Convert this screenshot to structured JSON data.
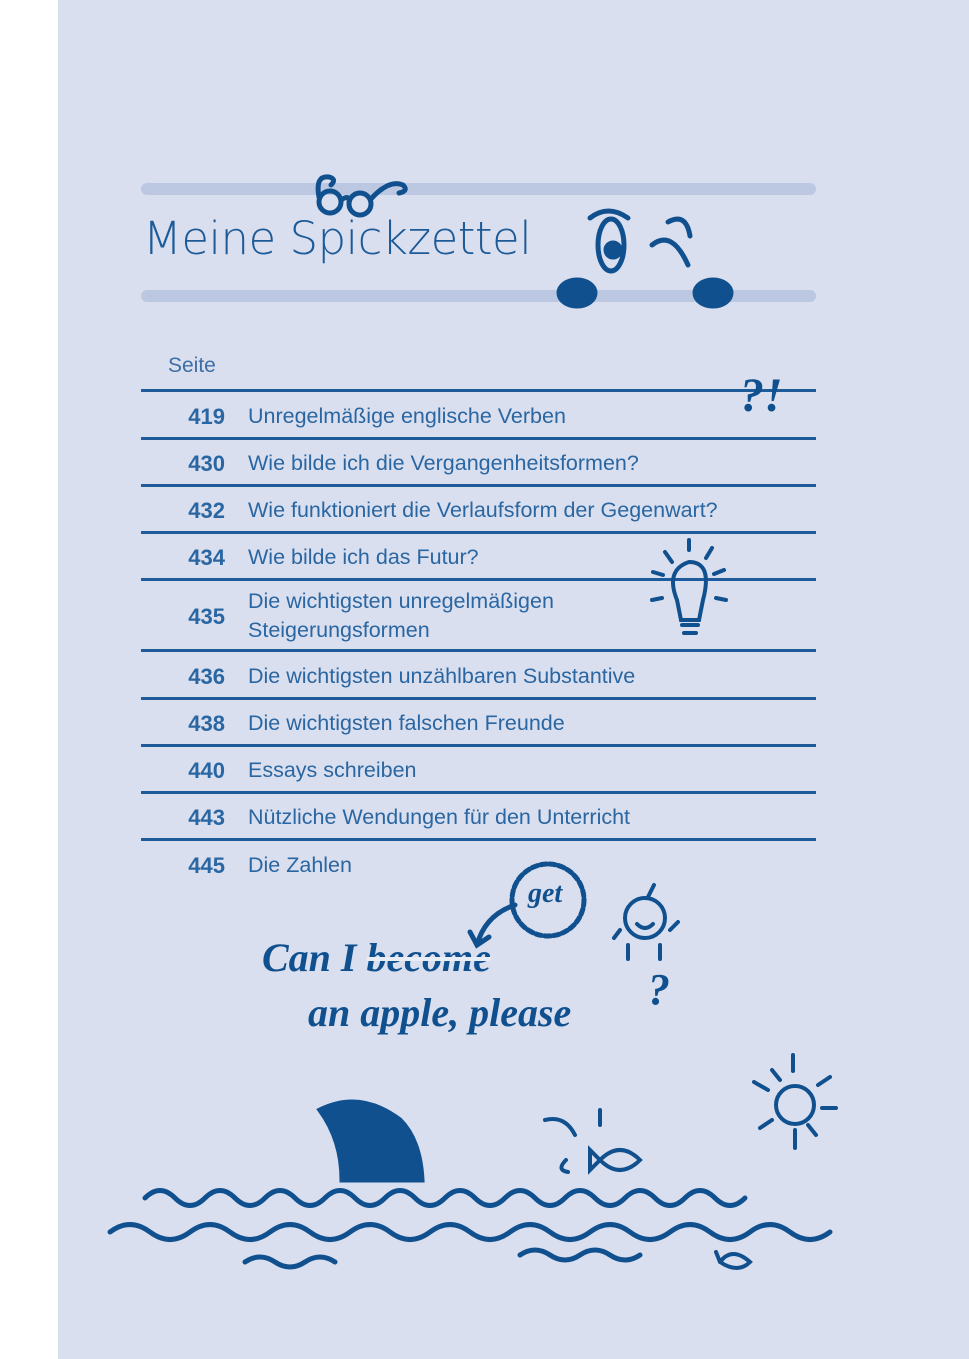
{
  "title": "Meine Spickzettel",
  "column_header": "Seite",
  "entries": [
    {
      "page": "419",
      "title": "Unregelmäßige englische Verben"
    },
    {
      "page": "430",
      "title": "Wie bilde ich die Vergangenheitsformen?"
    },
    {
      "page": "432",
      "title": "Wie funktioniert die Verlaufsform der Gegenwart?"
    },
    {
      "page": "434",
      "title": "Wie bilde ich das Futur?"
    },
    {
      "page": "435",
      "title": "Die wichtigsten unregelmäßigen Steigerungsformen"
    },
    {
      "page": "436",
      "title": "Die wichtigsten unzählbaren Substantive"
    },
    {
      "page": "438",
      "title": "Die wichtigsten falschen Freunde"
    },
    {
      "page": "440",
      "title": "Essays schreiben"
    },
    {
      "page": "443",
      "title": "Nützliche Wendungen für den Unterricht"
    },
    {
      "page": "445",
      "title": "Die Zahlen"
    }
  ],
  "doodle": {
    "line1_start": "Can I",
    "struck_word": "become",
    "replacement": "get",
    "line2": "an apple, please",
    "question_mark": "?",
    "interrobang": "?!"
  },
  "colors": {
    "background": "#d9dfee",
    "ink": "#1b5996",
    "bars": "#bcc8e1"
  }
}
